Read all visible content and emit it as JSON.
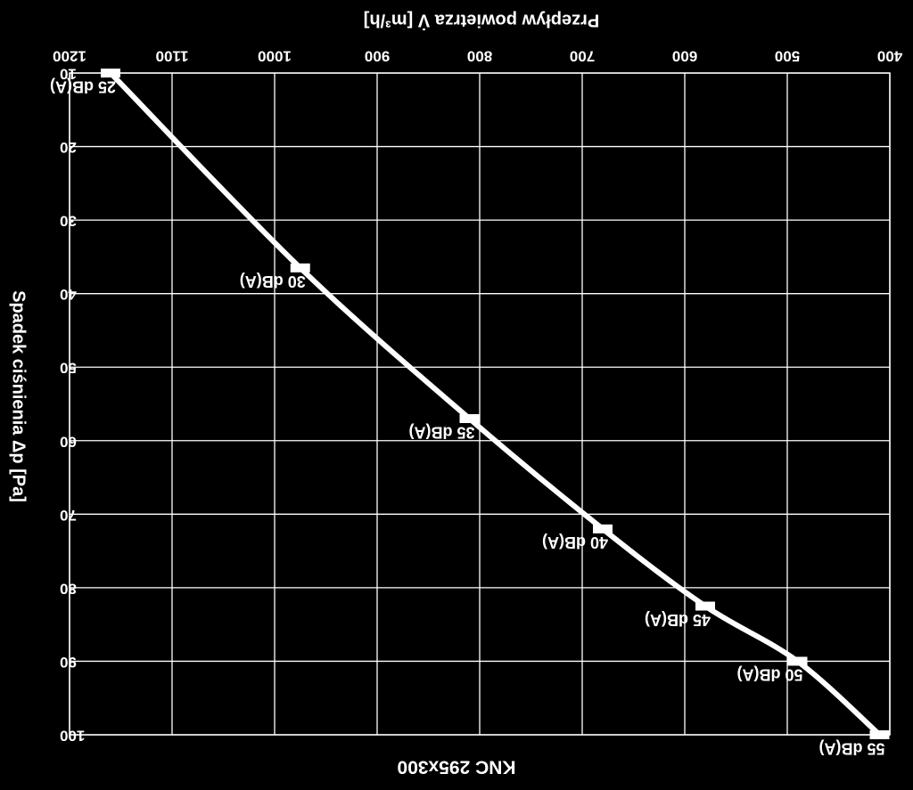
{
  "chart_data": {
    "type": "line",
    "title": "KNC 295x300",
    "x_axis": {
      "label": "Przepływ powietrza V̇ [m³/h]",
      "ticks": [
        "400",
        "500",
        "600",
        "700",
        "800",
        "900",
        "1000",
        "1100",
        "1200"
      ],
      "range": [
        400,
        1200
      ],
      "position": "top",
      "mirrored": true
    },
    "y_axis": {
      "label": "Spadek ciśnienia Δp [Pa]",
      "ticks": [
        "10",
        "20",
        "30",
        "40",
        "50",
        "60",
        "70",
        "80",
        "90",
        "100"
      ],
      "range": [
        10,
        100
      ],
      "mirrored": true
    },
    "grid": true,
    "rendering": "image is mirrored (flipped horizontally and vertically)",
    "colors": {
      "background": "#000000",
      "line": "#ffffff",
      "grid": "#ffffff"
    },
    "series": [
      {
        "x": [
          410,
          490,
          580,
          680,
          810,
          975,
          1160
        ],
        "y": [
          100,
          90,
          82.5,
          72,
          57,
          36.5,
          10
        ]
      }
    ],
    "point_labels": [
      "55 dB(A)",
      "50 dB(A)",
      "45 dB(A)",
      "40 dB(A)",
      "35 dB(A)",
      "30 dB(A)",
      "25 dB(A)"
    ]
  }
}
